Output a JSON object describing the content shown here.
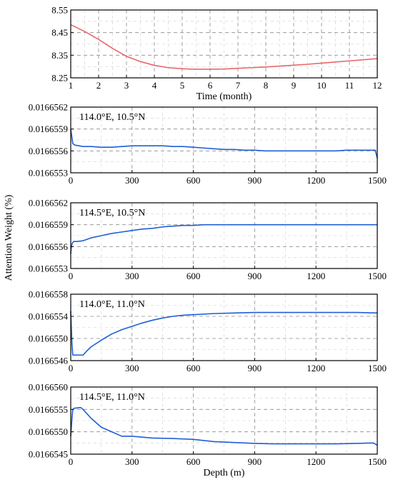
{
  "figure": {
    "shared_ylabel": "Attention Weight (%)"
  },
  "chart_data": [
    {
      "type": "line",
      "title": "",
      "annotation": "",
      "xlabel": "Time (month)",
      "ylabel": "",
      "xlim": [
        1,
        12
      ],
      "ylim": [
        8.25,
        8.55
      ],
      "xticks": [
        1,
        2,
        3,
        4,
        5,
        6,
        7,
        8,
        9,
        10,
        11,
        12
      ],
      "yticks": [
        8.25,
        8.35,
        8.45,
        8.55
      ],
      "tick_labels_y": [
        "8.25",
        "8.35",
        "8.45",
        "8.55"
      ],
      "grid": true,
      "color": "#e8676b",
      "series": [
        {
          "x": [
            1,
            1.5,
            2,
            2.5,
            3,
            3.5,
            4,
            4.5,
            5,
            5.5,
            6,
            6.5,
            7,
            7.5,
            8,
            8.5,
            9,
            9.5,
            10,
            10.5,
            11,
            11.5,
            12
          ],
          "values": [
            8.485,
            8.455,
            8.42,
            8.38,
            8.345,
            8.322,
            8.305,
            8.295,
            8.29,
            8.288,
            8.288,
            8.289,
            8.292,
            8.295,
            8.298,
            8.302,
            8.306,
            8.31,
            8.315,
            8.32,
            8.325,
            8.33,
            8.335
          ]
        }
      ]
    },
    {
      "type": "line",
      "title": "",
      "annotation": "114.0°E, 10.5°N",
      "xlabel": "",
      "ylabel": "",
      "xlim": [
        0,
        1500
      ],
      "ylim": [
        0.0166553,
        0.0166562
      ],
      "xticks": [
        0,
        300,
        600,
        900,
        1200,
        1500
      ],
      "yticks": [
        0.0166553,
        0.0166556,
        0.0166559,
        0.0166562
      ],
      "tick_labels_y": [
        "0.0166553",
        "0.0166556",
        "0.0166559",
        "0.0166562"
      ],
      "grid": true,
      "color": "#1f5fd6",
      "series": [
        {
          "x": [
            0,
            5,
            10,
            20,
            40,
            60,
            100,
            150,
            200,
            250,
            300,
            350,
            400,
            450,
            500,
            550,
            600,
            650,
            700,
            750,
            800,
            850,
            900,
            950,
            1000,
            1050,
            1100,
            1150,
            1200,
            1250,
            1300,
            1350,
            1400,
            1450,
            1490,
            1500
          ],
          "values": [
            0.0166559,
            0.0166558,
            0.0166557,
            0.01665568,
            0.01665567,
            0.01665566,
            0.01665566,
            0.01665565,
            0.01665565,
            0.01665566,
            0.01665567,
            0.01665567,
            0.01665567,
            0.01665567,
            0.01665566,
            0.01665566,
            0.01665565,
            0.01665564,
            0.01665563,
            0.01665562,
            0.01665562,
            0.01665561,
            0.01665561,
            0.0166556,
            0.0166556,
            0.0166556,
            0.0166556,
            0.0166556,
            0.0166556,
            0.0166556,
            0.0166556,
            0.01665561,
            0.01665561,
            0.01665561,
            0.01665561,
            0.0166555
          ]
        }
      ]
    },
    {
      "type": "line",
      "title": "",
      "annotation": "114.5°E, 10.5°N",
      "xlabel": "",
      "ylabel": "",
      "xlim": [
        0,
        1500
      ],
      "ylim": [
        0.0166553,
        0.0166562
      ],
      "xticks": [
        0,
        300,
        600,
        900,
        1200,
        1500
      ],
      "yticks": [
        0.0166553,
        0.0166556,
        0.0166559,
        0.0166562
      ],
      "tick_labels_y": [
        "0.0166553",
        "0.0166556",
        "0.0166559",
        "0.0166562"
      ],
      "grid": true,
      "color": "#1f5fd6",
      "series": [
        {
          "x": [
            0,
            3,
            8,
            15,
            30,
            60,
            100,
            150,
            200,
            250,
            300,
            350,
            400,
            450,
            500,
            550,
            600,
            650,
            700,
            750,
            800,
            850,
            900,
            950,
            1000,
            1100,
            1200,
            1300,
            1400,
            1450,
            1500
          ],
          "values": [
            0.0166555,
            0.0166556,
            0.01665565,
            0.01665567,
            0.01665567,
            0.01665568,
            0.01665572,
            0.01665575,
            0.01665578,
            0.0166558,
            0.01665582,
            0.01665584,
            0.01665585,
            0.01665587,
            0.01665588,
            0.01665589,
            0.01665589,
            0.0166559,
            0.0166559,
            0.0166559,
            0.0166559,
            0.0166559,
            0.0166559,
            0.0166559,
            0.0166559,
            0.0166559,
            0.0166559,
            0.0166559,
            0.0166559,
            0.0166559,
            0.0166559
          ]
        }
      ]
    },
    {
      "type": "line",
      "title": "",
      "annotation": "114.0°E, 11.0°N",
      "xlabel": "",
      "ylabel": "",
      "xlim": [
        0,
        1500
      ],
      "ylim": [
        0.0166546,
        0.0166558
      ],
      "xticks": [
        0,
        300,
        600,
        900,
        1200,
        1500
      ],
      "yticks": [
        0.0166546,
        0.016655,
        0.0166554,
        0.0166558
      ],
      "tick_labels_y": [
        "0.0166546",
        "0.0166550",
        "0.0166554",
        "0.0166558"
      ],
      "grid": true,
      "color": "#1f5fd6",
      "series": [
        {
          "x": [
            0,
            3,
            6,
            10,
            20,
            40,
            60,
            80,
            100,
            150,
            200,
            250,
            300,
            350,
            400,
            450,
            500,
            550,
            600,
            700,
            800,
            900,
            1000,
            1100,
            1200,
            1300,
            1400,
            1500
          ],
          "values": [
            0.0166555,
            0.0166552,
            0.0166549,
            0.0166547,
            0.0166547,
            0.0166547,
            0.0166547,
            0.01665478,
            0.01665485,
            0.01665497,
            0.01665508,
            0.01665516,
            0.01665522,
            0.01665528,
            0.01665533,
            0.01665537,
            0.0166554,
            0.01665542,
            0.01665543,
            0.01665545,
            0.01665546,
            0.01665547,
            0.01665547,
            0.01665547,
            0.01665547,
            0.01665547,
            0.01665547,
            0.01665546
          ]
        }
      ]
    },
    {
      "type": "line",
      "title": "",
      "annotation": "114.5°E, 11.0°N",
      "xlabel": "Depth (m)",
      "ylabel": "",
      "xlim": [
        0,
        1500
      ],
      "ylim": [
        0.0166545,
        0.016656
      ],
      "xticks": [
        0,
        300,
        600,
        900,
        1200,
        1500
      ],
      "yticks": [
        0.0166545,
        0.016655,
        0.0166555,
        0.016656
      ],
      "tick_labels_y": [
        "0.0166545",
        "0.0166550",
        "0.0166555",
        "0.0166560"
      ],
      "grid": true,
      "color": "#1f5fd6",
      "series": [
        {
          "x": [
            0,
            3,
            6,
            10,
            20,
            30,
            40,
            50,
            60,
            80,
            100,
            150,
            200,
            250,
            300,
            400,
            500,
            600,
            700,
            800,
            900,
            1000,
            1100,
            1200,
            1300,
            1400,
            1480,
            1500
          ],
          "values": [
            0.0166549,
            0.0166551,
            0.0166553,
            0.0166555,
            0.01665553,
            0.01665553,
            0.01665554,
            0.01665554,
            0.0166555,
            0.0166554,
            0.0166553,
            0.0166551,
            0.016655,
            0.0166549,
            0.0166549,
            0.01665486,
            0.01665485,
            0.01665483,
            0.01665478,
            0.01665476,
            0.01665474,
            0.01665473,
            0.01665473,
            0.01665473,
            0.01665473,
            0.01665474,
            0.01665475,
            0.0166547
          ]
        }
      ]
    }
  ]
}
